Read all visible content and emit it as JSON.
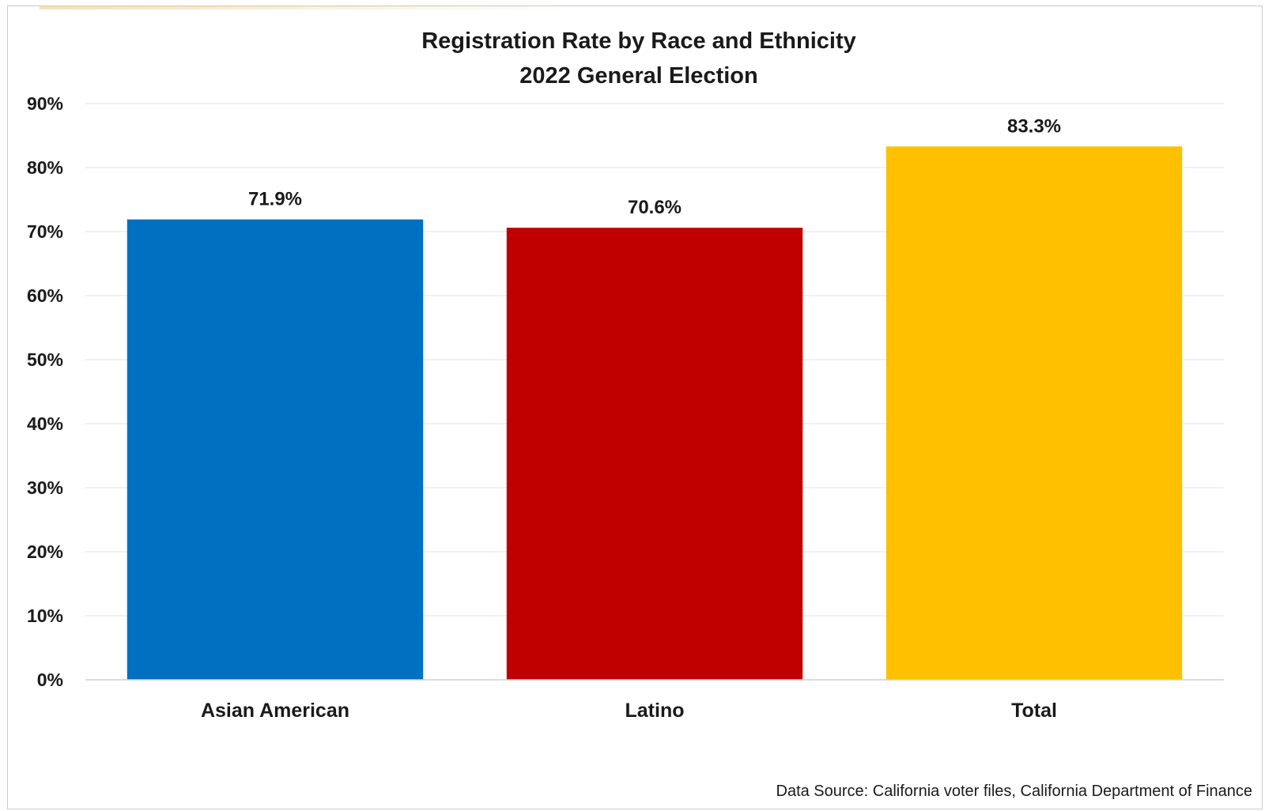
{
  "chart_data": {
    "type": "bar",
    "title": "Registration Rate by Race and Ethnicity",
    "subtitle": "2022 General Election",
    "xlabel": "",
    "ylabel": "",
    "categories": [
      "Asian American",
      "Latino",
      "Total"
    ],
    "values": [
      71.9,
      70.6,
      83.3
    ],
    "data_labels": [
      "71.9%",
      "70.6%",
      "83.3%"
    ],
    "bar_colors": [
      "#0070C0",
      "#C00000",
      "#FFC000"
    ],
    "ylim": [
      0,
      90
    ],
    "y_ticks": [
      0,
      10,
      20,
      30,
      40,
      50,
      60,
      70,
      80,
      90
    ],
    "y_tick_labels": [
      "0%",
      "10%",
      "20%",
      "30%",
      "40%",
      "50%",
      "60%",
      "70%",
      "80%",
      "90%"
    ],
    "grid": true,
    "legend": "none",
    "source": "Data Source: California voter files, California Department of Finance"
  }
}
